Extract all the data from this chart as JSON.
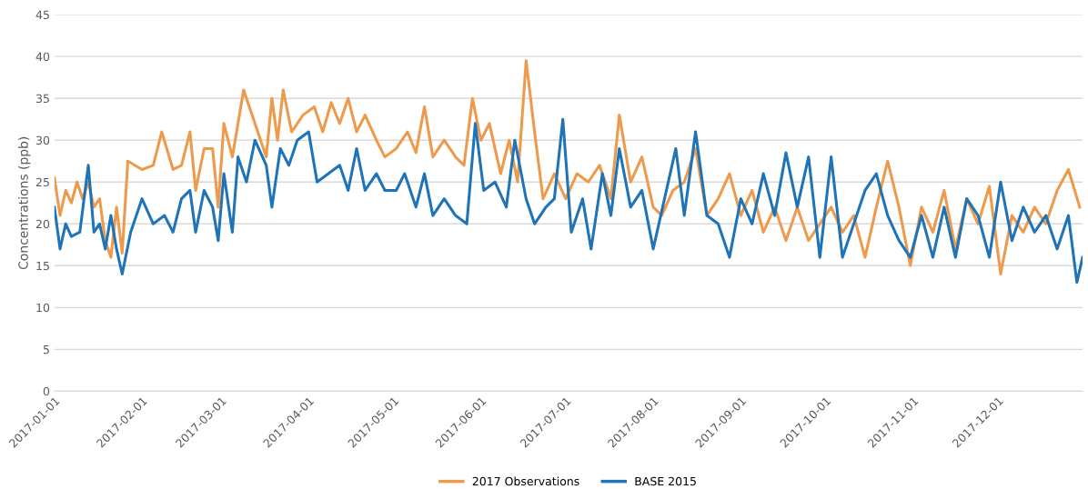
{
  "chart_data": {
    "type": "line",
    "ylabel": "Concentrations (ppb)",
    "xlim": [
      "2017-01-01",
      "2017-12-31"
    ],
    "xticks": [
      "2017-01-01",
      "2017-02-01",
      "2017-03-01",
      "2017-04-01",
      "2017-05-01",
      "2017-06-01",
      "2017-07-01",
      "2017-08-01",
      "2017-09-01",
      "2017-10-01",
      "2017-11-01",
      "2017-12-01"
    ],
    "ylim": [
      0,
      45
    ],
    "yticks": [
      0,
      5,
      10,
      15,
      20,
      25,
      30,
      35,
      40,
      45
    ],
    "grid": "y",
    "legend": "bottom",
    "marker": "none",
    "line_style": "solid",
    "series": [
      {
        "name": "2017 Observations",
        "color": "#ed9a4d",
        "x": [
          "2017-01-01",
          "2017-01-03",
          "2017-01-05",
          "2017-01-07",
          "2017-01-09",
          "2017-01-11",
          "2017-01-13",
          "2017-01-15",
          "2017-01-17",
          "2017-01-19",
          "2017-01-21",
          "2017-01-23",
          "2017-01-25",
          "2017-01-27",
          "2017-02-01",
          "2017-02-05",
          "2017-02-08",
          "2017-02-12",
          "2017-02-15",
          "2017-02-18",
          "2017-02-20",
          "2017-02-23",
          "2017-02-26",
          "2017-02-28",
          "2017-03-02",
          "2017-03-05",
          "2017-03-09",
          "2017-03-13",
          "2017-03-17",
          "2017-03-19",
          "2017-03-21",
          "2017-03-23",
          "2017-03-26",
          "2017-03-30",
          "2017-04-03",
          "2017-04-06",
          "2017-04-09",
          "2017-04-12",
          "2017-04-15",
          "2017-04-18",
          "2017-04-21",
          "2017-04-25",
          "2017-04-28",
          "2017-05-02",
          "2017-05-06",
          "2017-05-09",
          "2017-05-12",
          "2017-05-15",
          "2017-05-19",
          "2017-05-23",
          "2017-05-26",
          "2017-05-29",
          "2017-06-01",
          "2017-06-04",
          "2017-06-08",
          "2017-06-11",
          "2017-06-14",
          "2017-06-17",
          "2017-06-20",
          "2017-06-23",
          "2017-06-27",
          "2017-07-01",
          "2017-07-05",
          "2017-07-09",
          "2017-07-13",
          "2017-07-17",
          "2017-07-20",
          "2017-07-24",
          "2017-07-28",
          "2017-08-01",
          "2017-08-04",
          "2017-08-08",
          "2017-08-12",
          "2017-08-16",
          "2017-08-20",
          "2017-08-24",
          "2017-08-28",
          "2017-09-01",
          "2017-09-05",
          "2017-09-09",
          "2017-09-13",
          "2017-09-17",
          "2017-09-21",
          "2017-09-25",
          "2017-09-29",
          "2017-10-03",
          "2017-10-07",
          "2017-10-11",
          "2017-10-15",
          "2017-10-19",
          "2017-10-23",
          "2017-10-27",
          "2017-10-31",
          "2017-11-04",
          "2017-11-08",
          "2017-11-12",
          "2017-11-16",
          "2017-11-20",
          "2017-11-24",
          "2017-11-28",
          "2017-12-02",
          "2017-12-06",
          "2017-12-10",
          "2017-12-14",
          "2017-12-18",
          "2017-12-22",
          "2017-12-26",
          "2017-12-30"
        ],
        "values": [
          25.5,
          21,
          24,
          22.5,
          25,
          23,
          25,
          22,
          23,
          18,
          16,
          22,
          16.5,
          27.5,
          26.5,
          27,
          31,
          26.5,
          27,
          31,
          24,
          29,
          29,
          22,
          32,
          28,
          36,
          32,
          28,
          35,
          30,
          36,
          31,
          33,
          34,
          31,
          34.5,
          32,
          35,
          31,
          33,
          30,
          28,
          29,
          31,
          28.5,
          34,
          28,
          30,
          28,
          27,
          35,
          30,
          32,
          26,
          30,
          25,
          39.5,
          31,
          23,
          26,
          23,
          26,
          25,
          27,
          23,
          33,
          25,
          28,
          22,
          21,
          24,
          25,
          29,
          21,
          23,
          26,
          21,
          24,
          19,
          22,
          18,
          22,
          18,
          20,
          22,
          19,
          21,
          16,
          22,
          27.5,
          22,
          15,
          22,
          19,
          24,
          17,
          23,
          20,
          24.5,
          14,
          21,
          19,
          22,
          20,
          24,
          26.5,
          22
        ]
      },
      {
        "name": "BASE 2015",
        "color": "#1f74b8",
        "x": [
          "2017-01-01",
          "2017-01-03",
          "2017-01-05",
          "2017-01-07",
          "2017-01-10",
          "2017-01-13",
          "2017-01-15",
          "2017-01-17",
          "2017-01-19",
          "2017-01-21",
          "2017-01-23",
          "2017-01-25",
          "2017-01-28",
          "2017-02-01",
          "2017-02-05",
          "2017-02-09",
          "2017-02-12",
          "2017-02-15",
          "2017-02-18",
          "2017-02-20",
          "2017-02-23",
          "2017-02-26",
          "2017-02-28",
          "2017-03-02",
          "2017-03-05",
          "2017-03-07",
          "2017-03-10",
          "2017-03-13",
          "2017-03-17",
          "2017-03-19",
          "2017-03-22",
          "2017-03-25",
          "2017-03-28",
          "2017-04-01",
          "2017-04-04",
          "2017-04-08",
          "2017-04-12",
          "2017-04-15",
          "2017-04-18",
          "2017-04-21",
          "2017-04-25",
          "2017-04-28",
          "2017-05-02",
          "2017-05-05",
          "2017-05-09",
          "2017-05-12",
          "2017-05-15",
          "2017-05-19",
          "2017-05-23",
          "2017-05-27",
          "2017-05-30",
          "2017-06-02",
          "2017-06-06",
          "2017-06-10",
          "2017-06-13",
          "2017-06-17",
          "2017-06-20",
          "2017-06-24",
          "2017-06-27",
          "2017-06-30",
          "2017-07-03",
          "2017-07-07",
          "2017-07-10",
          "2017-07-14",
          "2017-07-17",
          "2017-07-20",
          "2017-07-24",
          "2017-07-28",
          "2017-08-01",
          "2017-08-05",
          "2017-08-09",
          "2017-08-12",
          "2017-08-16",
          "2017-08-20",
          "2017-08-24",
          "2017-08-28",
          "2017-09-01",
          "2017-09-05",
          "2017-09-09",
          "2017-09-13",
          "2017-09-17",
          "2017-09-21",
          "2017-09-25",
          "2017-09-29",
          "2017-10-03",
          "2017-10-07",
          "2017-10-11",
          "2017-10-15",
          "2017-10-19",
          "2017-10-23",
          "2017-10-27",
          "2017-10-31",
          "2017-11-04",
          "2017-11-08",
          "2017-11-12",
          "2017-11-16",
          "2017-11-20",
          "2017-11-24",
          "2017-11-28",
          "2017-12-02",
          "2017-12-06",
          "2017-12-10",
          "2017-12-14",
          "2017-12-18",
          "2017-12-22",
          "2017-12-26",
          "2017-12-29",
          "2017-12-31"
        ],
        "values": [
          22,
          17,
          20,
          18.5,
          19,
          27,
          19,
          20,
          17,
          21,
          17,
          14,
          19,
          23,
          20,
          21,
          19,
          23,
          24,
          19,
          24,
          22,
          18,
          26,
          19,
          28,
          25,
          30,
          27,
          22,
          29,
          27,
          30,
          31,
          25,
          26,
          27,
          24,
          29,
          24,
          26,
          24,
          24,
          26,
          22,
          26,
          21,
          23,
          21,
          20,
          32,
          24,
          25,
          22,
          30,
          23,
          20,
          22,
          23,
          32.5,
          19,
          23,
          17,
          26,
          21,
          29,
          22,
          24,
          17,
          23,
          29,
          21,
          31,
          21,
          20,
          16,
          23,
          20,
          26,
          21,
          28.5,
          22,
          28,
          16,
          28,
          16,
          20,
          24,
          26,
          21,
          18,
          16,
          21,
          16,
          22,
          16,
          23,
          21,
          16,
          25,
          18,
          22,
          19,
          21,
          17,
          21,
          13,
          16
        ]
      }
    ]
  }
}
